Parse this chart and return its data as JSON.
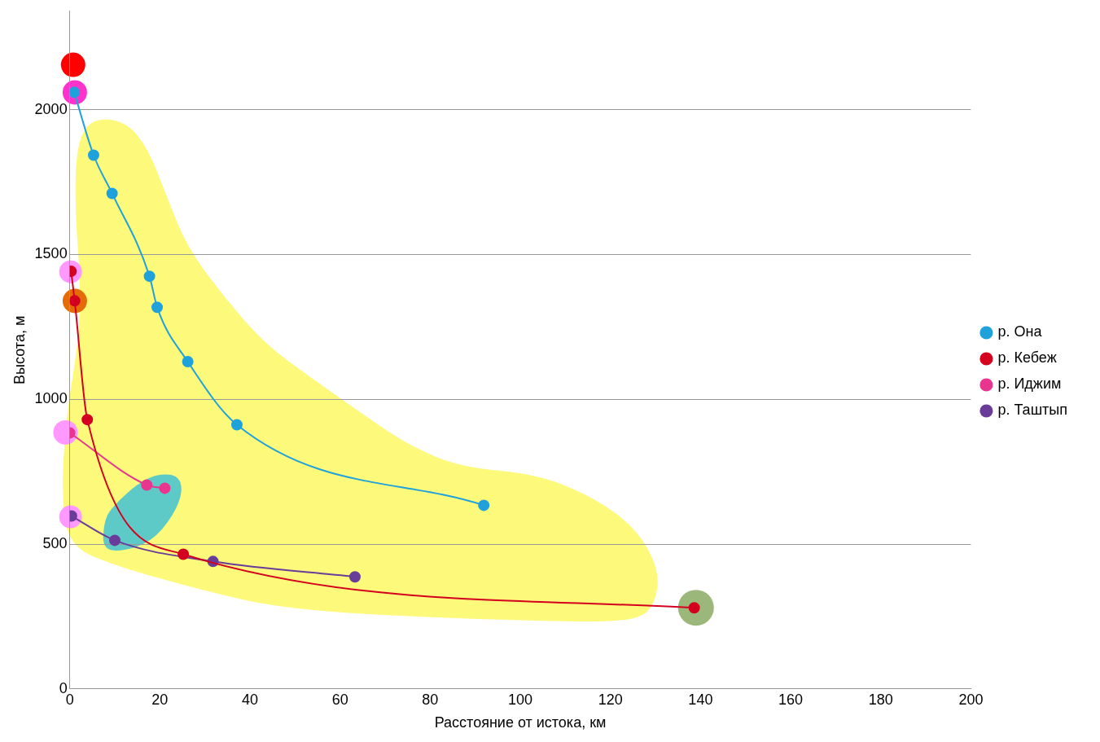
{
  "chart_data": {
    "type": "line",
    "xlabel": "Расстояние от истока, км",
    "ylabel": "Высота, м",
    "xlim": [
      0,
      200
    ],
    "xticks": [
      0,
      20,
      40,
      60,
      80,
      100,
      120,
      140,
      160,
      180,
      200
    ],
    "ylim": [
      0,
      2340
    ],
    "yticks": [
      0,
      500,
      1000,
      1500,
      2000
    ],
    "grid": "y",
    "legend": "right",
    "marker": "circle",
    "line_style": "solid",
    "series": [
      {
        "name": "р. Она",
        "color": "#1fa2dc",
        "x": [
          1,
          5.3,
          9.4,
          17.7,
          19.4,
          26.2,
          37.1,
          91.9
        ],
        "values": [
          2060,
          1843,
          1711,
          1425,
          1318,
          1130,
          912,
          634
        ]
      },
      {
        "name": "р. Кебеж",
        "color": "#d4001f",
        "x": [
          0.3,
          1.1,
          3.9,
          25.2,
          138.6
        ],
        "values": [
          1442,
          1340,
          930,
          465,
          280
        ]
      },
      {
        "name": "р. Иджим",
        "color": "#e8368f",
        "x": [
          0,
          17.1,
          21.1
        ],
        "values": [
          884,
          704,
          693
        ]
      },
      {
        "name": "р. Таштып",
        "color": "#6a3c9a",
        "x": [
          0.4,
          10,
          31.8,
          63.3
        ],
        "values": [
          597,
          513,
          440,
          387
        ]
      }
    ]
  }
}
